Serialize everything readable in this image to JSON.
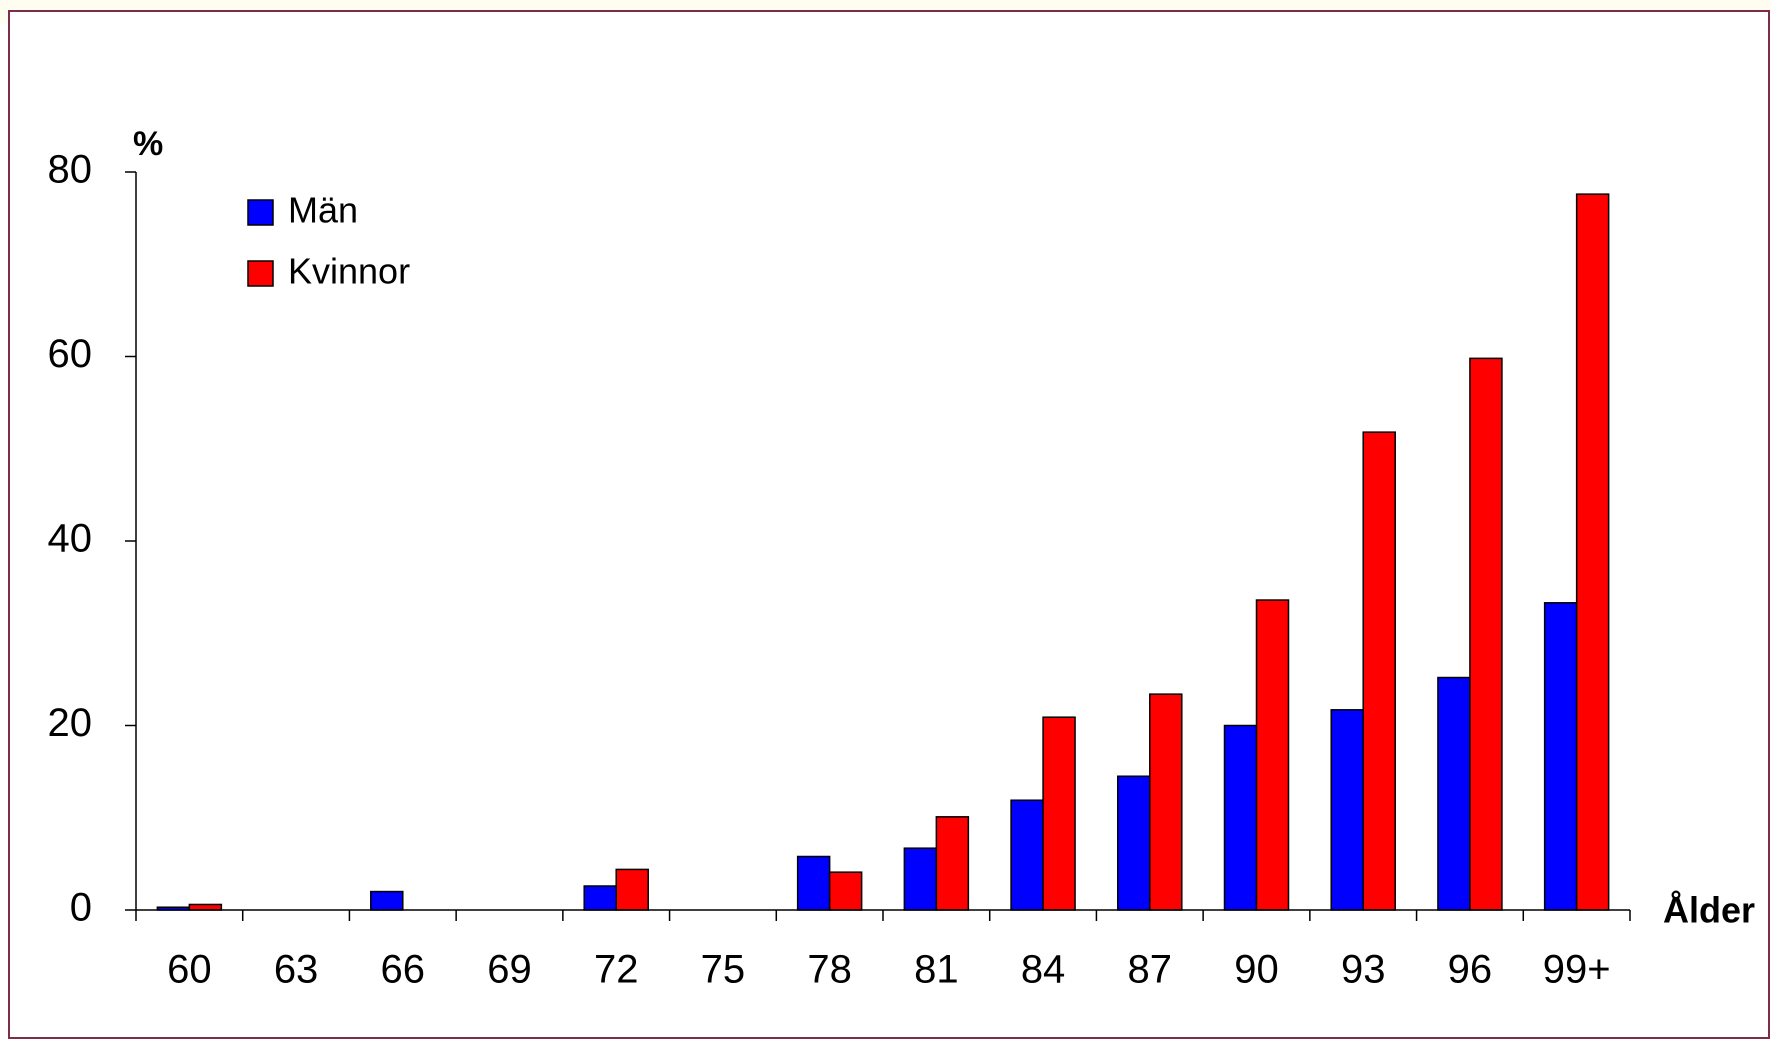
{
  "chart_data": {
    "type": "bar",
    "y_label": "%",
    "x_label": "Ålder",
    "categories": [
      "60",
      "63",
      "66",
      "69",
      "72",
      "75",
      "78",
      "81",
      "84",
      "87",
      "90",
      "93",
      "96",
      "99+"
    ],
    "series": [
      {
        "name": "Män",
        "color": "#0000ff",
        "values": [
          0.3,
          0,
          2,
          0,
          2.6,
          0,
          5.8,
          6.7,
          11.9,
          14.5,
          20,
          21.7,
          25.2,
          33.3
        ]
      },
      {
        "name": "Kvinnor",
        "color": "#ff0000",
        "values": [
          0.6,
          0,
          0,
          0,
          4.4,
          0,
          4.1,
          10.1,
          20.9,
          23.4,
          33.6,
          51.8,
          59.8,
          77.6
        ]
      }
    ],
    "ylim": [
      0,
      80
    ],
    "yticks": [
      0,
      20,
      40,
      60,
      80
    ],
    "grid": false,
    "legend": "upper left"
  }
}
